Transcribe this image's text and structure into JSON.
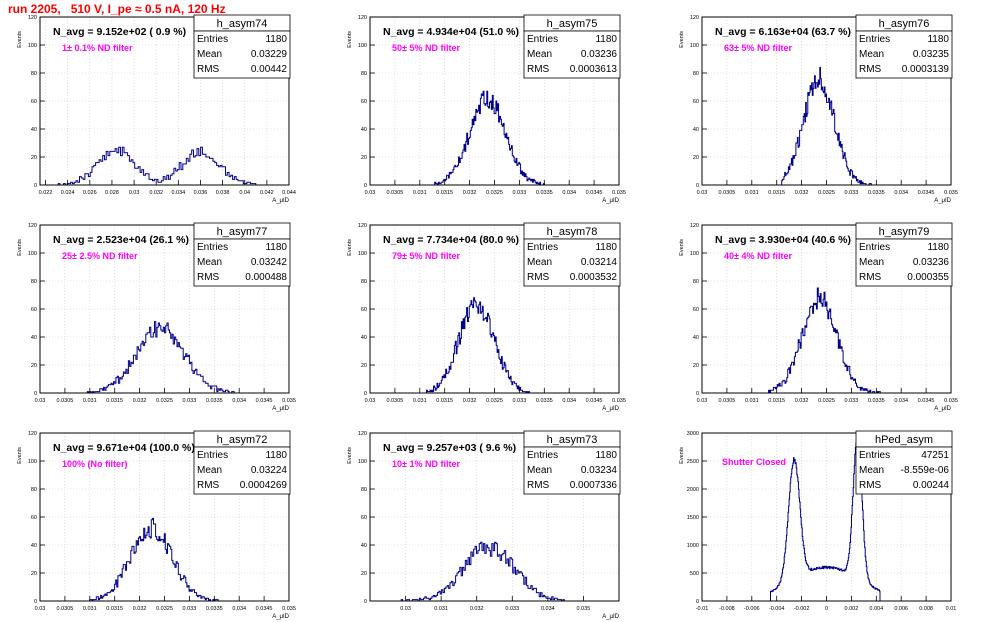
{
  "page_title": "run 2205,   510 V, I_pe ≈ 0.5 nA, 120 Hz",
  "colors": {
    "title": "#ff0000",
    "histogram": "#00008b",
    "filter_label": "#ff00ff",
    "navg": "#000000",
    "frame": "#000000"
  },
  "chart_data": [
    {
      "type": "histogram",
      "name": "h_asym74",
      "stats": {
        "entries_label": "Entries",
        "entries": "1180",
        "mean_label": "Mean",
        "mean": "0.03229",
        "rms_label": "RMS",
        "rms": "0.00442"
      },
      "navg": "N_avg = 9.152e+02 ( 0.9 %)",
      "filter": "1± 0.1% ND filter",
      "ylabel": "Events",
      "xlabel": "A_μID",
      "xlim": [
        0.0215,
        0.044
      ],
      "ylim": [
        0,
        120
      ],
      "xticks": [
        0.022,
        0.024,
        0.026,
        0.028,
        0.03,
        0.032,
        0.034,
        0.036,
        0.038,
        0.04,
        0.042,
        0.044
      ],
      "xtick_labels": [
        "0.022",
        "0.024",
        "0.026",
        "0.028",
        "0.03",
        "0.032",
        "0.034",
        "0.036",
        "0.038",
        "0.04",
        "0.042",
        "0.044"
      ],
      "yticks": [
        0,
        20,
        40,
        60,
        80,
        100,
        120
      ],
      "ytick_labels": [
        "0",
        "20",
        "40",
        "60",
        "80",
        "100",
        "120"
      ],
      "peaks": [
        {
          "mu": 0.0284,
          "sigma": 0.0017,
          "amp": 24
        },
        {
          "mu": 0.0361,
          "sigma": 0.0017,
          "amp": 25
        }
      ],
      "xmin_data": 0.0225,
      "xmax_data": 0.0418,
      "bins": 120,
      "seed": 74
    },
    {
      "type": "histogram",
      "name": "h_asym75",
      "stats": {
        "entries_label": "Entries",
        "entries": "1180",
        "mean_label": "Mean",
        "mean": "0.03236",
        "rms_label": "RMS",
        "rms": "0.0003613"
      },
      "navg": "N_avg = 4.934e+04 (51.0 %)",
      "filter": "50± 5% ND filter",
      "ylabel": "Events",
      "xlabel": "A_μID",
      "xlim": [
        0.03,
        0.035
      ],
      "ylim": [
        0,
        120
      ],
      "xticks": [
        0.03,
        0.0305,
        0.031,
        0.0315,
        0.032,
        0.0325,
        0.033,
        0.0335,
        0.034,
        0.0345,
        0.035
      ],
      "xtick_labels": [
        "0.03",
        "0.0305",
        "0.031",
        "0.0315",
        "0.032",
        "0.0325",
        "0.033",
        "0.0335",
        "0.034",
        "0.0345",
        "0.035"
      ],
      "yticks": [
        0,
        20,
        40,
        60,
        80,
        100,
        120
      ],
      "ytick_labels": [
        "0",
        "20",
        "40",
        "60",
        "80",
        "100",
        "120"
      ],
      "peaks": [
        {
          "mu": 0.03236,
          "sigma": 0.00036,
          "amp": 62
        }
      ],
      "xmin_data": 0.0313,
      "xmax_data": 0.0335,
      "bins": 120,
      "seed": 75
    },
    {
      "type": "histogram",
      "name": "h_asym76",
      "stats": {
        "entries_label": "Entries",
        "entries": "1180",
        "mean_label": "Mean",
        "mean": "0.03235",
        "rms_label": "RMS",
        "rms": "0.0003139"
      },
      "navg": "N_avg = 6.163e+04 (63.7 %)",
      "filter": "63± 5% ND filter",
      "ylabel": "Events",
      "xlabel": "A_μID",
      "xlim": [
        0.03,
        0.035
      ],
      "ylim": [
        0,
        120
      ],
      "xticks": [
        0.03,
        0.0305,
        0.031,
        0.0315,
        0.032,
        0.0325,
        0.033,
        0.0335,
        0.034,
        0.0345,
        0.035
      ],
      "xtick_labels": [
        "0.03",
        "0.0305",
        "0.031",
        "0.0315",
        "0.032",
        "0.0325",
        "0.033",
        "0.0335",
        "0.034",
        "0.0345",
        "0.035"
      ],
      "yticks": [
        0,
        20,
        40,
        60,
        80,
        100,
        120
      ],
      "ytick_labels": [
        "0",
        "20",
        "40",
        "60",
        "80",
        "100",
        "120"
      ],
      "peaks": [
        {
          "mu": 0.03235,
          "sigma": 0.00031,
          "amp": 76
        }
      ],
      "xmin_data": 0.0316,
      "xmax_data": 0.0334,
      "bins": 120,
      "seed": 76
    },
    {
      "type": "histogram",
      "name": "h_asym77",
      "stats": {
        "entries_label": "Entries",
        "entries": "1180",
        "mean_label": "Mean",
        "mean": "0.03242",
        "rms_label": "RMS",
        "rms": "0.000488"
      },
      "navg": "N_avg = 2.523e+04 (26.1 %)",
      "filter": "25± 2.5% ND filter",
      "ylabel": "Events",
      "xlabel": "A_μID",
      "xlim": [
        0.03,
        0.035
      ],
      "ylim": [
        0,
        120
      ],
      "xticks": [
        0.03,
        0.0305,
        0.031,
        0.0315,
        0.032,
        0.0325,
        0.033,
        0.0335,
        0.034,
        0.0345,
        0.035
      ],
      "xtick_labels": [
        "0.03",
        "0.0305",
        "0.031",
        "0.0315",
        "0.032",
        "0.0325",
        "0.033",
        "0.0335",
        "0.034",
        "0.0345",
        "0.035"
      ],
      "yticks": [
        0,
        20,
        40,
        60,
        80,
        100,
        120
      ],
      "ytick_labels": [
        "0",
        "20",
        "40",
        "60",
        "80",
        "100",
        "120"
      ],
      "peaks": [
        {
          "mu": 0.03242,
          "sigma": 0.00048,
          "amp": 46
        }
      ],
      "xmin_data": 0.0309,
      "xmax_data": 0.0339,
      "bins": 120,
      "seed": 77
    },
    {
      "type": "histogram",
      "name": "h_asym78",
      "stats": {
        "entries_label": "Entries",
        "entries": "1180",
        "mean_label": "Mean",
        "mean": "0.03214",
        "rms_label": "RMS",
        "rms": "0.0003532"
      },
      "navg": "N_avg = 7.734e+04 (80.0 %)",
      "filter": "79± 5% ND filter",
      "ylabel": "Events",
      "xlabel": "A_μID",
      "xlim": [
        0.03,
        0.035
      ],
      "ylim": [
        0,
        120
      ],
      "xticks": [
        0.03,
        0.0305,
        0.031,
        0.0315,
        0.032,
        0.0325,
        0.033,
        0.0335,
        0.034,
        0.0345,
        0.035
      ],
      "xtick_labels": [
        "0.03",
        "0.0305",
        "0.031",
        "0.0315",
        "0.032",
        "0.0325",
        "0.033",
        "0.0335",
        "0.034",
        "0.0345",
        "0.035"
      ],
      "yticks": [
        0,
        20,
        40,
        60,
        80,
        100,
        120
      ],
      "ytick_labels": [
        "0",
        "20",
        "40",
        "60",
        "80",
        "100",
        "120"
      ],
      "peaks": [
        {
          "mu": 0.03214,
          "sigma": 0.00035,
          "amp": 64
        }
      ],
      "xmin_data": 0.0311,
      "xmax_data": 0.0332,
      "bins": 120,
      "seed": 78
    },
    {
      "type": "histogram",
      "name": "h_asym79",
      "stats": {
        "entries_label": "Entries",
        "entries": "1180",
        "mean_label": "Mean",
        "mean": "0.03236",
        "rms_label": "RMS",
        "rms": "0.000355"
      },
      "navg": "N_avg = 3.930e+04 (40.6 %)",
      "filter": "40± 4% ND filter",
      "ylabel": "Events",
      "xlabel": "A_μID",
      "xlim": [
        0.03,
        0.035
      ],
      "ylim": [
        0,
        120
      ],
      "xticks": [
        0.03,
        0.0305,
        0.031,
        0.0315,
        0.032,
        0.0325,
        0.033,
        0.0335,
        0.034,
        0.0345,
        0.035
      ],
      "xtick_labels": [
        "0.03",
        "0.0305",
        "0.031",
        "0.0315",
        "0.032",
        "0.0325",
        "0.033",
        "0.0335",
        "0.034",
        "0.0345",
        "0.035"
      ],
      "yticks": [
        0,
        20,
        40,
        60,
        80,
        100,
        120
      ],
      "ytick_labels": [
        "0",
        "20",
        "40",
        "60",
        "80",
        "100",
        "120"
      ],
      "peaks": [
        {
          "mu": 0.03236,
          "sigma": 0.00035,
          "amp": 68
        }
      ],
      "xmin_data": 0.0313,
      "xmax_data": 0.0336,
      "bins": 120,
      "seed": 79
    },
    {
      "type": "histogram",
      "name": "h_asym72",
      "stats": {
        "entries_label": "Entries",
        "entries": "1180",
        "mean_label": "Mean",
        "mean": "0.03224",
        "rms_label": "RMS",
        "rms": "0.0004269"
      },
      "navg": "N_avg = 9.671e+04 (100.0 %)",
      "filter": "100% (No filter)",
      "ylabel": "Events",
      "xlabel": "A_μID",
      "xlim": [
        0.03,
        0.035
      ],
      "ylim": [
        0,
        120
      ],
      "xticks": [
        0.03,
        0.0305,
        0.031,
        0.0315,
        0.032,
        0.0325,
        0.033,
        0.0335,
        0.034,
        0.0345,
        0.035
      ],
      "xtick_labels": [
        "0.03",
        "0.0305",
        "0.031",
        "0.0315",
        "0.032",
        "0.0325",
        "0.033",
        "0.0335",
        "0.034",
        "0.0345",
        "0.035"
      ],
      "yticks": [
        0,
        20,
        40,
        60,
        80,
        100,
        120
      ],
      "ytick_labels": [
        "0",
        "20",
        "40",
        "60",
        "80",
        "100",
        "120"
      ],
      "peaks": [
        {
          "mu": 0.03224,
          "sigma": 0.00042,
          "amp": 52
        }
      ],
      "xmin_data": 0.031,
      "xmax_data": 0.0336,
      "bins": 120,
      "seed": 72
    },
    {
      "type": "histogram",
      "name": "h_asym73",
      "stats": {
        "entries_label": "Entries",
        "entries": "1180",
        "mean_label": "Mean",
        "mean": "0.03234",
        "rms_label": "RMS",
        "rms": "0.0007336"
      },
      "navg": "N_avg = 9.257e+03 ( 9.6 %)",
      "filter": "10± 1% ND filter",
      "ylabel": "Events",
      "xlabel": "A_μID",
      "xlim": [
        0.029,
        0.036
      ],
      "ylim": [
        0,
        120
      ],
      "xticks": [
        0.03,
        0.031,
        0.032,
        0.033,
        0.034,
        0.035
      ],
      "xtick_labels": [
        "0.03",
        "0.031",
        "0.032",
        "0.033",
        "0.034",
        "0.035"
      ],
      "yticks": [
        0,
        20,
        40,
        60,
        80,
        100,
        120
      ],
      "ytick_labels": [
        "0",
        "20",
        "40",
        "60",
        "80",
        "100",
        "120"
      ],
      "peaks": [
        {
          "mu": 0.03234,
          "sigma": 0.00072,
          "amp": 38
        }
      ],
      "xmin_data": 0.0298,
      "xmax_data": 0.0345,
      "bins": 120,
      "seed": 73
    },
    {
      "type": "histogram",
      "name": "hPed_asym",
      "stats": {
        "entries_label": "Entries",
        "entries": "47251",
        "mean_label": "Mean",
        "mean": "-8.559e-06",
        "rms_label": "RMS",
        "rms": "0.00244"
      },
      "navg": "",
      "filter": "Shutter Closed",
      "ylabel": "Events",
      "xlabel": "",
      "xlim": [
        -0.01,
        0.01
      ],
      "ylim": [
        0,
        3000
      ],
      "xticks": [
        -0.01,
        -0.008,
        -0.006,
        -0.004,
        -0.002,
        0,
        0.002,
        0.004,
        0.006,
        0.008,
        0.01
      ],
      "xtick_labels": [
        "-0.01",
        "-0.008",
        "-0.006",
        "-0.004",
        "-0.002",
        "0",
        "0.002",
        "0.004",
        "0.006",
        "0.008",
        "0.01"
      ],
      "yticks": [
        0,
        500,
        1000,
        1500,
        2000,
        2500,
        3000
      ],
      "ytick_labels": [
        "0",
        "500",
        "1000",
        "1500",
        "2000",
        "2500",
        "3000"
      ],
      "peaks": [
        {
          "mu": -0.0026,
          "sigma": 0.00045,
          "amp": 2150
        },
        {
          "mu": 0.0025,
          "sigma": 0.00035,
          "amp": 2550
        },
        {
          "mu": 0.0,
          "sigma": 0.0028,
          "amp": 600
        }
      ],
      "xmin_data": -0.0045,
      "xmax_data": 0.0043,
      "bins": 200,
      "seed": 99
    }
  ]
}
